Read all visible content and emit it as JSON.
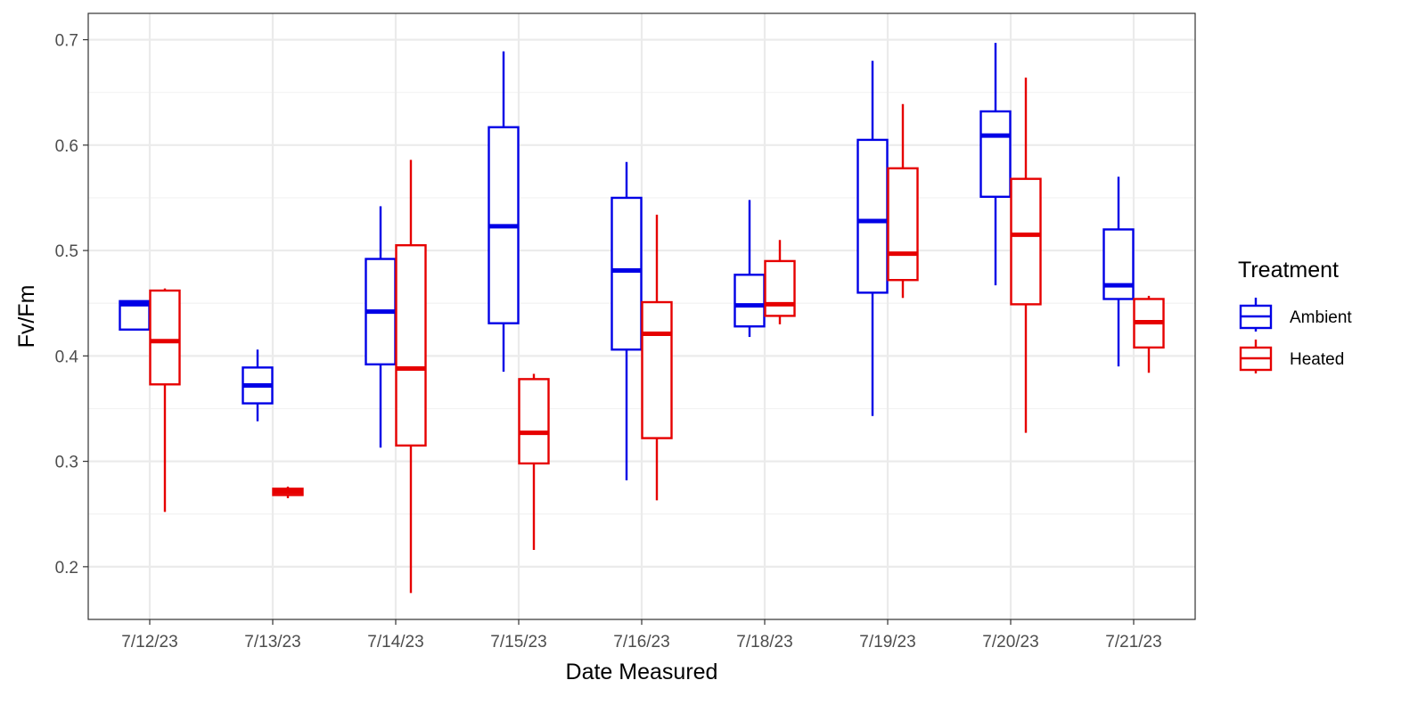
{
  "chart_data": {
    "type": "box",
    "xlabel": "Date Measured",
    "ylabel": "Fv/Fm",
    "ylim": [
      0.15,
      0.725
    ],
    "yticks": [
      0.2,
      0.3,
      0.4,
      0.5,
      0.6,
      0.7
    ],
    "ytick_labels": [
      "0.2",
      "0.3",
      "0.4",
      "0.5",
      "0.6",
      "0.7"
    ],
    "grid": true,
    "legend": {
      "title": "Treatment",
      "placement": "right"
    },
    "categories": [
      "7/12/23",
      "7/13/23",
      "7/14/23",
      "7/15/23",
      "7/16/23",
      "7/18/23",
      "7/19/23",
      "7/20/23",
      "7/21/23"
    ],
    "series": [
      {
        "name": "Ambient",
        "color": "#0000e6",
        "boxes": [
          {
            "min": 0.425,
            "q1": 0.425,
            "median": 0.449,
            "q3": 0.452,
            "max": 0.452
          },
          {
            "min": 0.338,
            "q1": 0.355,
            "median": 0.372,
            "q3": 0.389,
            "max": 0.406
          },
          {
            "min": 0.313,
            "q1": 0.392,
            "median": 0.442,
            "q3": 0.492,
            "max": 0.542
          },
          {
            "min": 0.385,
            "q1": 0.431,
            "median": 0.523,
            "q3": 0.617,
            "max": 0.689
          },
          {
            "min": 0.282,
            "q1": 0.406,
            "median": 0.481,
            "q3": 0.55,
            "max": 0.584
          },
          {
            "min": 0.418,
            "q1": 0.428,
            "median": 0.448,
            "q3": 0.477,
            "max": 0.548
          },
          {
            "min": 0.343,
            "q1": 0.46,
            "median": 0.528,
            "q3": 0.605,
            "max": 0.68
          },
          {
            "min": 0.467,
            "q1": 0.551,
            "median": 0.609,
            "q3": 0.632,
            "max": 0.697
          },
          {
            "min": 0.39,
            "q1": 0.454,
            "median": 0.467,
            "q3": 0.52,
            "max": 0.57
          }
        ]
      },
      {
        "name": "Heated",
        "color": "#e60000",
        "boxes": [
          {
            "min": 0.252,
            "q1": 0.373,
            "median": 0.414,
            "q3": 0.462,
            "max": 0.464
          },
          {
            "min": 0.265,
            "q1": 0.268,
            "median": 0.271,
            "q3": 0.274,
            "max": 0.276
          },
          {
            "min": 0.175,
            "q1": 0.315,
            "median": 0.388,
            "q3": 0.505,
            "max": 0.586
          },
          {
            "min": 0.216,
            "q1": 0.298,
            "median": 0.327,
            "q3": 0.378,
            "max": 0.383
          },
          {
            "min": 0.263,
            "q1": 0.322,
            "median": 0.421,
            "q3": 0.451,
            "max": 0.534
          },
          {
            "min": 0.43,
            "q1": 0.438,
            "median": 0.449,
            "q3": 0.49,
            "max": 0.51
          },
          {
            "min": 0.455,
            "q1": 0.472,
            "median": 0.497,
            "q3": 0.578,
            "max": 0.639
          },
          {
            "min": 0.327,
            "q1": 0.449,
            "median": 0.515,
            "q3": 0.568,
            "max": 0.664
          },
          {
            "min": 0.384,
            "q1": 0.408,
            "median": 0.432,
            "q3": 0.454,
            "max": 0.457
          }
        ]
      }
    ]
  }
}
